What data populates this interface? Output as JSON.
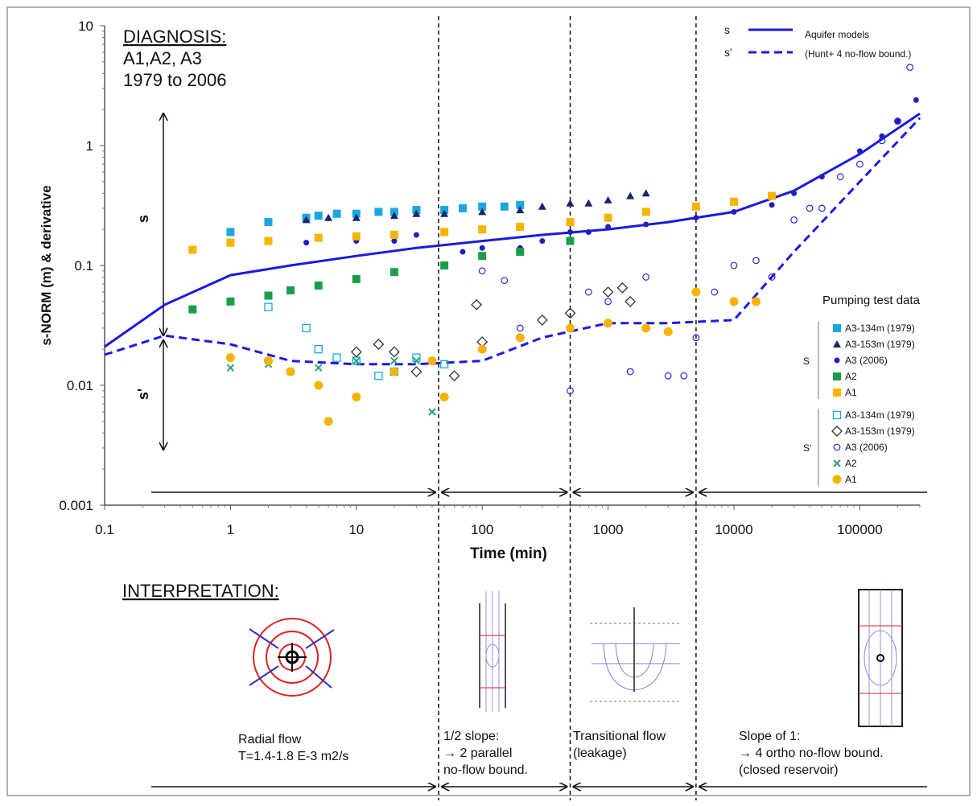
{
  "chart_data": {
    "type": "scatter",
    "x_label": "Time (min)",
    "y_label": "s-NORM (m) & derivative",
    "xscale": "log",
    "yscale": "log",
    "xlim": [
      0.1,
      300000
    ],
    "ylim": [
      0.001,
      10
    ],
    "xticks": [
      0.1,
      1,
      10,
      100,
      1000,
      10000,
      100000
    ],
    "yticks": [
      0.001,
      0.01,
      0.1,
      1,
      10
    ],
    "diagnosis": [
      "DIAGNOSIS:",
      "A1,A2, A3",
      "1979 to 2006"
    ],
    "range_labels": [
      "s",
      "s'"
    ],
    "boundaries": [
      45,
      500,
      5000
    ],
    "models_title": [
      "Aquifer models",
      "(Hunt+ 4 no-flow bound.)"
    ],
    "model_x": [
      0.1,
      0.3,
      1,
      3,
      10,
      30,
      100,
      300,
      1000,
      3000,
      10000,
      30000,
      100000,
      300000
    ],
    "models": [
      {
        "name": "s",
        "color": "#1a1ae0",
        "dashed": false,
        "values": [
          0.021,
          0.047,
          0.083,
          0.1,
          0.12,
          0.14,
          0.16,
          0.18,
          0.2,
          0.23,
          0.28,
          0.42,
          0.85,
          1.85
        ]
      },
      {
        "name": "s'",
        "color": "#1a1ae0",
        "dashed": true,
        "values": [
          0.018,
          0.026,
          0.022,
          0.016,
          0.015,
          0.015,
          0.016,
          0.025,
          0.033,
          0.033,
          0.035,
          0.13,
          0.5,
          1.7
        ]
      }
    ],
    "legend_title": "Pumping test data",
    "legend_groups": [
      "S",
      "S'"
    ],
    "series": [
      {
        "name": "A3-134m (1979)",
        "group": 0,
        "marker": "square",
        "color": "#1aa7e0",
        "x": [
          1,
          2,
          4,
          5,
          7,
          10,
          15,
          20,
          30,
          50,
          70,
          100,
          150,
          200
        ],
        "values": [
          0.19,
          0.23,
          0.25,
          0.26,
          0.27,
          0.27,
          0.28,
          0.28,
          0.29,
          0.29,
          0.3,
          0.31,
          0.31,
          0.32
        ]
      },
      {
        "name": "A3-153m (1979)",
        "group": 0,
        "marker": "triangle",
        "color": "#14286e",
        "x": [
          4,
          6,
          10,
          20,
          30,
          50,
          100,
          200,
          300,
          500,
          700,
          1000,
          1500,
          2000
        ],
        "values": [
          0.24,
          0.25,
          0.25,
          0.26,
          0.27,
          0.27,
          0.28,
          0.29,
          0.31,
          0.33,
          0.33,
          0.35,
          0.38,
          0.4
        ]
      },
      {
        "name": "A3 (2006)",
        "group": 0,
        "marker": "dot",
        "color": "#1f1fbf",
        "x": [
          4,
          10,
          20,
          30,
          70,
          100,
          200,
          300,
          500,
          700,
          1000,
          2000,
          5000,
          10000,
          20000,
          30000,
          50000,
          100000,
          150000,
          200000,
          280000
        ],
        "values": [
          0.155,
          0.16,
          0.16,
          0.18,
          0.13,
          0.14,
          0.14,
          0.16,
          0.19,
          0.19,
          0.21,
          0.22,
          0.25,
          0.28,
          0.32,
          0.4,
          0.55,
          0.9,
          1.2,
          1.6,
          2.4
        ]
      },
      {
        "name": "A2",
        "group": 0,
        "marker": "square",
        "color": "#1a9e4a",
        "x": [
          0.5,
          1,
          2,
          3,
          5,
          10,
          20,
          50,
          100,
          200,
          500
        ],
        "values": [
          0.043,
          0.05,
          0.056,
          0.062,
          0.068,
          0.077,
          0.088,
          0.1,
          0.12,
          0.13,
          0.16
        ]
      },
      {
        "name": "A1",
        "group": 0,
        "marker": "square",
        "color": "#f5b400",
        "x": [
          0.5,
          1,
          2,
          5,
          10,
          20,
          50,
          100,
          200,
          500,
          1000,
          2000,
          5000,
          10000,
          20000
        ],
        "values": [
          0.135,
          0.155,
          0.16,
          0.17,
          0.175,
          0.18,
          0.19,
          0.2,
          0.21,
          0.23,
          0.25,
          0.28,
          0.31,
          0.34,
          0.38
        ]
      },
      {
        "name": "A3-134m (1979)",
        "group": 1,
        "marker": "open-square",
        "color": "#1aa7e0",
        "x": [
          2,
          4,
          5,
          7,
          10,
          15,
          20,
          30,
          50
        ],
        "values": [
          0.045,
          0.03,
          0.02,
          0.017,
          0.016,
          0.012,
          0.013,
          0.017,
          0.015
        ]
      },
      {
        "name": "A3-153m (1979)",
        "group": 1,
        "marker": "diamond",
        "color": "#333333",
        "x": [
          10,
          15,
          20,
          30,
          60,
          90,
          100,
          300,
          500,
          1000,
          1300,
          1500
        ],
        "values": [
          0.019,
          0.022,
          0.019,
          0.013,
          0.012,
          0.047,
          0.023,
          0.035,
          0.04,
          0.06,
          0.065,
          0.05
        ]
      },
      {
        "name": "A3 (2006)",
        "group": 1,
        "marker": "open-circle",
        "color": "#2a2ad0",
        "x": [
          100,
          150,
          200,
          500,
          700,
          1000,
          1500,
          2000,
          3000,
          4000,
          5000,
          7000,
          10000,
          15000,
          20000,
          30000,
          40000,
          50000,
          70000,
          100000,
          150000,
          200000,
          250000
        ],
        "values": [
          0.09,
          0.075,
          0.03,
          0.009,
          0.06,
          0.05,
          0.013,
          0.08,
          0.012,
          0.012,
          0.025,
          0.06,
          0.1,
          0.11,
          0.08,
          0.24,
          0.3,
          0.3,
          0.55,
          0.7,
          1.1,
          1.6,
          4.5
        ]
      },
      {
        "name": "A2",
        "group": 1,
        "marker": "x",
        "color": "#2aa07a",
        "x": [
          1,
          2,
          3,
          5,
          10,
          20,
          30,
          40
        ],
        "values": [
          0.014,
          0.015,
          0.013,
          0.014,
          0.016,
          0.016,
          0.016,
          0.006
        ]
      },
      {
        "name": "A1",
        "group": 1,
        "marker": "circle",
        "color": "#f5b400",
        "x": [
          1,
          2,
          3,
          5,
          6,
          10,
          20,
          40,
          50,
          100,
          200,
          500,
          1000,
          2000,
          3000,
          5000,
          10000,
          15000
        ],
        "values": [
          0.017,
          0.016,
          0.013,
          0.01,
          0.005,
          0.008,
          0.013,
          0.016,
          0.008,
          0.02,
          0.025,
          0.03,
          0.033,
          0.03,
          0.028,
          0.06,
          0.05,
          0.05
        ]
      }
    ],
    "interpretation": {
      "title": "INTERPRETATION:",
      "regimes": [
        [
          "Radial flow",
          "T=1.4-1.8 E-3 m2/s"
        ],
        [
          "1/2 slope:",
          "→ 2 parallel",
          "no-flow bound."
        ],
        [
          "Transitional flow",
          "(leakage)"
        ],
        [
          "Slope of 1:",
          "→ 4 ortho no-flow bound.",
          "(closed reservoir)"
        ]
      ]
    }
  }
}
